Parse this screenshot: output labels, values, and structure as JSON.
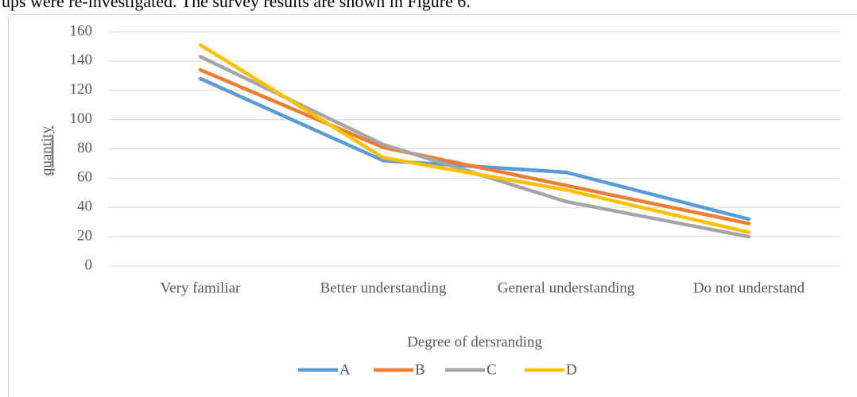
{
  "text": "ups were re-investigated. The survey results are shown in Figure 6.",
  "chart_data": {
    "type": "line",
    "x_label": "Degree of dersranding",
    "y_label": "quantity",
    "categories": [
      "Very familiar",
      "Better understanding",
      "General understanding",
      "Do not understand"
    ],
    "series": [
      {
        "name": "A",
        "color": "#5b9bd5",
        "values": [
          128,
          72,
          64,
          32
        ]
      },
      {
        "name": "B",
        "color": "#ed7d31",
        "values": [
          134,
          81,
          55,
          29
        ]
      },
      {
        "name": "C",
        "color": "#a5a5a5",
        "values": [
          143,
          83,
          44,
          20
        ]
      },
      {
        "name": "D",
        "color": "#ffc000",
        "values": [
          151,
          74,
          52,
          23
        ]
      }
    ],
    "ylim": [
      0,
      160
    ],
    "yticks": [
      0,
      20,
      40,
      60,
      80,
      100,
      120,
      140,
      160
    ],
    "grid": true,
    "legend": "bottom"
  }
}
